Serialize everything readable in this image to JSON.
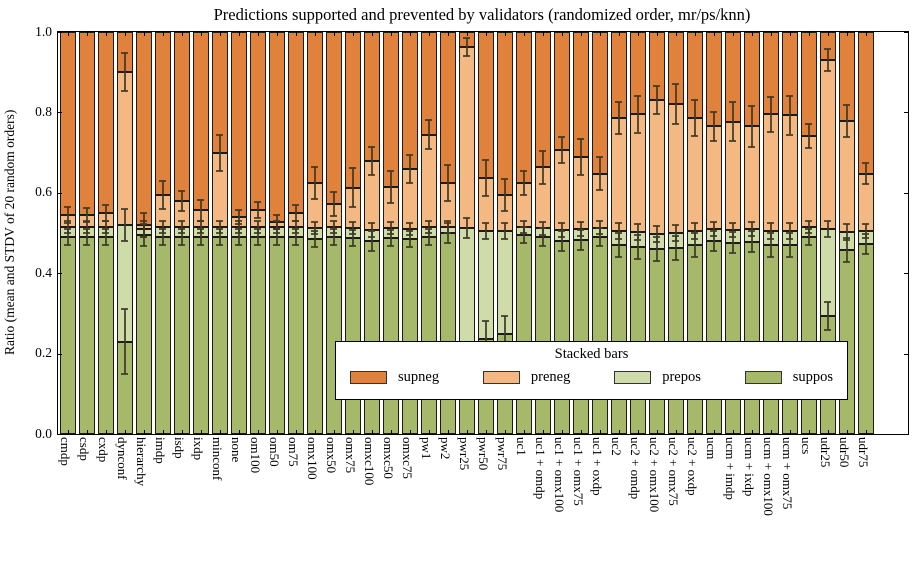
{
  "chart_data": {
    "type": "bar",
    "variant": "stacked-vertical",
    "title": "Predictions supported and prevented by validators (randomized order, mr/ps/knn)",
    "ylabel": "Ratio (mean and STDV of 20 random orders)",
    "xlabel": "",
    "ylim": [
      0.0,
      1.0
    ],
    "yticks": [
      "0.0",
      "0.2",
      "0.4",
      "0.6",
      "0.8",
      "1.0"
    ],
    "grid": false,
    "legend_title": "Stacked bars",
    "legend_position": "lower right, inside axes",
    "series": [
      {
        "name": "supneg",
        "color": "#e0813c"
      },
      {
        "name": "preneg",
        "color": "#f4b983"
      },
      {
        "name": "prepos",
        "color": "#cfdba9"
      },
      {
        "name": "suppos",
        "color": "#a6b86a"
      }
    ],
    "stack_note": "bars stacked bottom-up: suppos, prepos, preneg, supneg (top of supneg = 1.0). boundaries = [suppos_top, prepos_top, preneg_top]; err = STDV half-extent at each boundary",
    "categories": [
      "cmdp",
      "csdp",
      "cxdp",
      "dynconf",
      "hierarchy",
      "imdp",
      "isdp",
      "ixdp",
      "minconf",
      "none",
      "om100",
      "om50",
      "om75",
      "omx100",
      "omx50",
      "omx75",
      "omxc100",
      "omxc50",
      "omxc75",
      "pw1",
      "pw2",
      "pwr25",
      "pwr50",
      "pwr75",
      "uc1",
      "uc1 + omdp",
      "uc1 + omx100",
      "uc1 + omx75",
      "uc1 + oxdp",
      "uc2",
      "uc2 + omdp",
      "uc2 + omx100",
      "uc2 + omx75",
      "uc2 + oxdp",
      "ucm",
      "ucm + imdp",
      "ucm + ixdp",
      "ucm + omx100",
      "ucm + omx75",
      "ucs",
      "udr25",
      "udr50",
      "udr75"
    ],
    "bars": [
      {
        "boundaries": [
          0.49,
          0.515,
          0.545
        ],
        "err": [
          0.02,
          0.015,
          0.02
        ]
      },
      {
        "boundaries": [
          0.49,
          0.515,
          0.545
        ],
        "err": [
          0.02,
          0.015,
          0.018
        ]
      },
      {
        "boundaries": [
          0.49,
          0.515,
          0.55
        ],
        "err": [
          0.02,
          0.015,
          0.02
        ]
      },
      {
        "boundaries": [
          0.23,
          0.52,
          0.9
        ],
        "err": [
          0.08,
          0.04,
          0.048
        ]
      },
      {
        "boundaries": [
          0.495,
          0.51,
          0.52
        ],
        "err": [
          0.028,
          0.02,
          0.03
        ]
      },
      {
        "boundaries": [
          0.49,
          0.515,
          0.595
        ],
        "err": [
          0.02,
          0.015,
          0.035
        ]
      },
      {
        "boundaries": [
          0.49,
          0.515,
          0.58
        ],
        "err": [
          0.02,
          0.015,
          0.025
        ]
      },
      {
        "boundaries": [
          0.49,
          0.515,
          0.556
        ],
        "err": [
          0.02,
          0.015,
          0.025
        ]
      },
      {
        "boundaries": [
          0.49,
          0.515,
          0.7
        ],
        "err": [
          0.02,
          0.015,
          0.045
        ]
      },
      {
        "boundaries": [
          0.49,
          0.515,
          0.54
        ],
        "err": [
          0.02,
          0.015,
          0.018
        ]
      },
      {
        "boundaries": [
          0.49,
          0.515,
          0.558
        ],
        "err": [
          0.02,
          0.015,
          0.02
        ]
      },
      {
        "boundaries": [
          0.49,
          0.515,
          0.528
        ],
        "err": [
          0.02,
          0.015,
          0.018
        ]
      },
      {
        "boundaries": [
          0.49,
          0.515,
          0.55
        ],
        "err": [
          0.02,
          0.015,
          0.02
        ]
      },
      {
        "boundaries": [
          0.485,
          0.512,
          0.625
        ],
        "err": [
          0.02,
          0.015,
          0.04
        ]
      },
      {
        "boundaries": [
          0.49,
          0.515,
          0.572
        ],
        "err": [
          0.02,
          0.015,
          0.03
        ]
      },
      {
        "boundaries": [
          0.487,
          0.513,
          0.613
        ],
        "err": [
          0.02,
          0.015,
          0.048
        ]
      },
      {
        "boundaries": [
          0.48,
          0.508,
          0.68
        ],
        "err": [
          0.025,
          0.018,
          0.035
        ]
      },
      {
        "boundaries": [
          0.488,
          0.513,
          0.615
        ],
        "err": [
          0.02,
          0.015,
          0.04
        ]
      },
      {
        "boundaries": [
          0.485,
          0.51,
          0.66
        ],
        "err": [
          0.02,
          0.015,
          0.035
        ]
      },
      {
        "boundaries": [
          0.49,
          0.515,
          0.745
        ],
        "err": [
          0.02,
          0.015,
          0.035
        ]
      },
      {
        "boundaries": [
          0.5,
          0.515,
          0.625
        ],
        "err": [
          0.025,
          0.015,
          0.045
        ]
      },
      {
        "boundaries": [
          0.15,
          0.513,
          0.963
        ],
        "err": [
          0.0,
          0.025,
          0.022
        ]
      },
      {
        "boundaries": [
          0.236,
          0.505,
          0.636
        ],
        "err": [
          0.046,
          0.02,
          0.045
        ]
      },
      {
        "boundaries": [
          0.248,
          0.505,
          0.594
        ],
        "err": [
          0.045,
          0.02,
          0.04
        ]
      },
      {
        "boundaries": [
          0.495,
          0.515,
          0.624
        ],
        "err": [
          0.02,
          0.015,
          0.03
        ]
      },
      {
        "boundaries": [
          0.49,
          0.512,
          0.663
        ],
        "err": [
          0.022,
          0.016,
          0.04
        ]
      },
      {
        "boundaries": [
          0.48,
          0.508,
          0.706
        ],
        "err": [
          0.025,
          0.018,
          0.033
        ]
      },
      {
        "boundaries": [
          0.482,
          0.51,
          0.69
        ],
        "err": [
          0.025,
          0.018,
          0.045
        ]
      },
      {
        "boundaries": [
          0.49,
          0.513,
          0.648
        ],
        "err": [
          0.022,
          0.016,
          0.04
        ]
      },
      {
        "boundaries": [
          0.47,
          0.505,
          0.787
        ],
        "err": [
          0.03,
          0.02,
          0.04
        ]
      },
      {
        "boundaries": [
          0.465,
          0.502,
          0.795
        ],
        "err": [
          0.03,
          0.02,
          0.045
        ]
      },
      {
        "boundaries": [
          0.46,
          0.498,
          0.83
        ],
        "err": [
          0.03,
          0.02,
          0.035
        ]
      },
      {
        "boundaries": [
          0.462,
          0.5,
          0.82
        ],
        "err": [
          0.03,
          0.02,
          0.05
        ]
      },
      {
        "boundaries": [
          0.47,
          0.505,
          0.787
        ],
        "err": [
          0.03,
          0.02,
          0.045
        ]
      },
      {
        "boundaries": [
          0.48,
          0.51,
          0.765
        ],
        "err": [
          0.026,
          0.018,
          0.035
        ]
      },
      {
        "boundaries": [
          0.476,
          0.508,
          0.777
        ],
        "err": [
          0.026,
          0.018,
          0.048
        ]
      },
      {
        "boundaries": [
          0.478,
          0.51,
          0.765
        ],
        "err": [
          0.026,
          0.018,
          0.05
        ]
      },
      {
        "boundaries": [
          0.47,
          0.505,
          0.795
        ],
        "err": [
          0.03,
          0.02,
          0.044
        ]
      },
      {
        "boundaries": [
          0.47,
          0.505,
          0.793
        ],
        "err": [
          0.03,
          0.02,
          0.048
        ]
      },
      {
        "boundaries": [
          0.49,
          0.515,
          0.742
        ],
        "err": [
          0.02,
          0.015,
          0.03
        ]
      },
      {
        "boundaries": [
          0.293,
          0.51,
          0.93
        ],
        "err": [
          0.035,
          0.02,
          0.028
        ]
      },
      {
        "boundaries": [
          0.458,
          0.503,
          0.778
        ],
        "err": [
          0.03,
          0.02,
          0.04
        ]
      },
      {
        "boundaries": [
          0.472,
          0.505,
          0.648
        ],
        "err": [
          0.025,
          0.018,
          0.025
        ]
      }
    ],
    "colors": {
      "background": "#ffffff",
      "spine": "#000000",
      "bar_edge": "#1c1c14",
      "error_bar": "#3e3826"
    }
  }
}
